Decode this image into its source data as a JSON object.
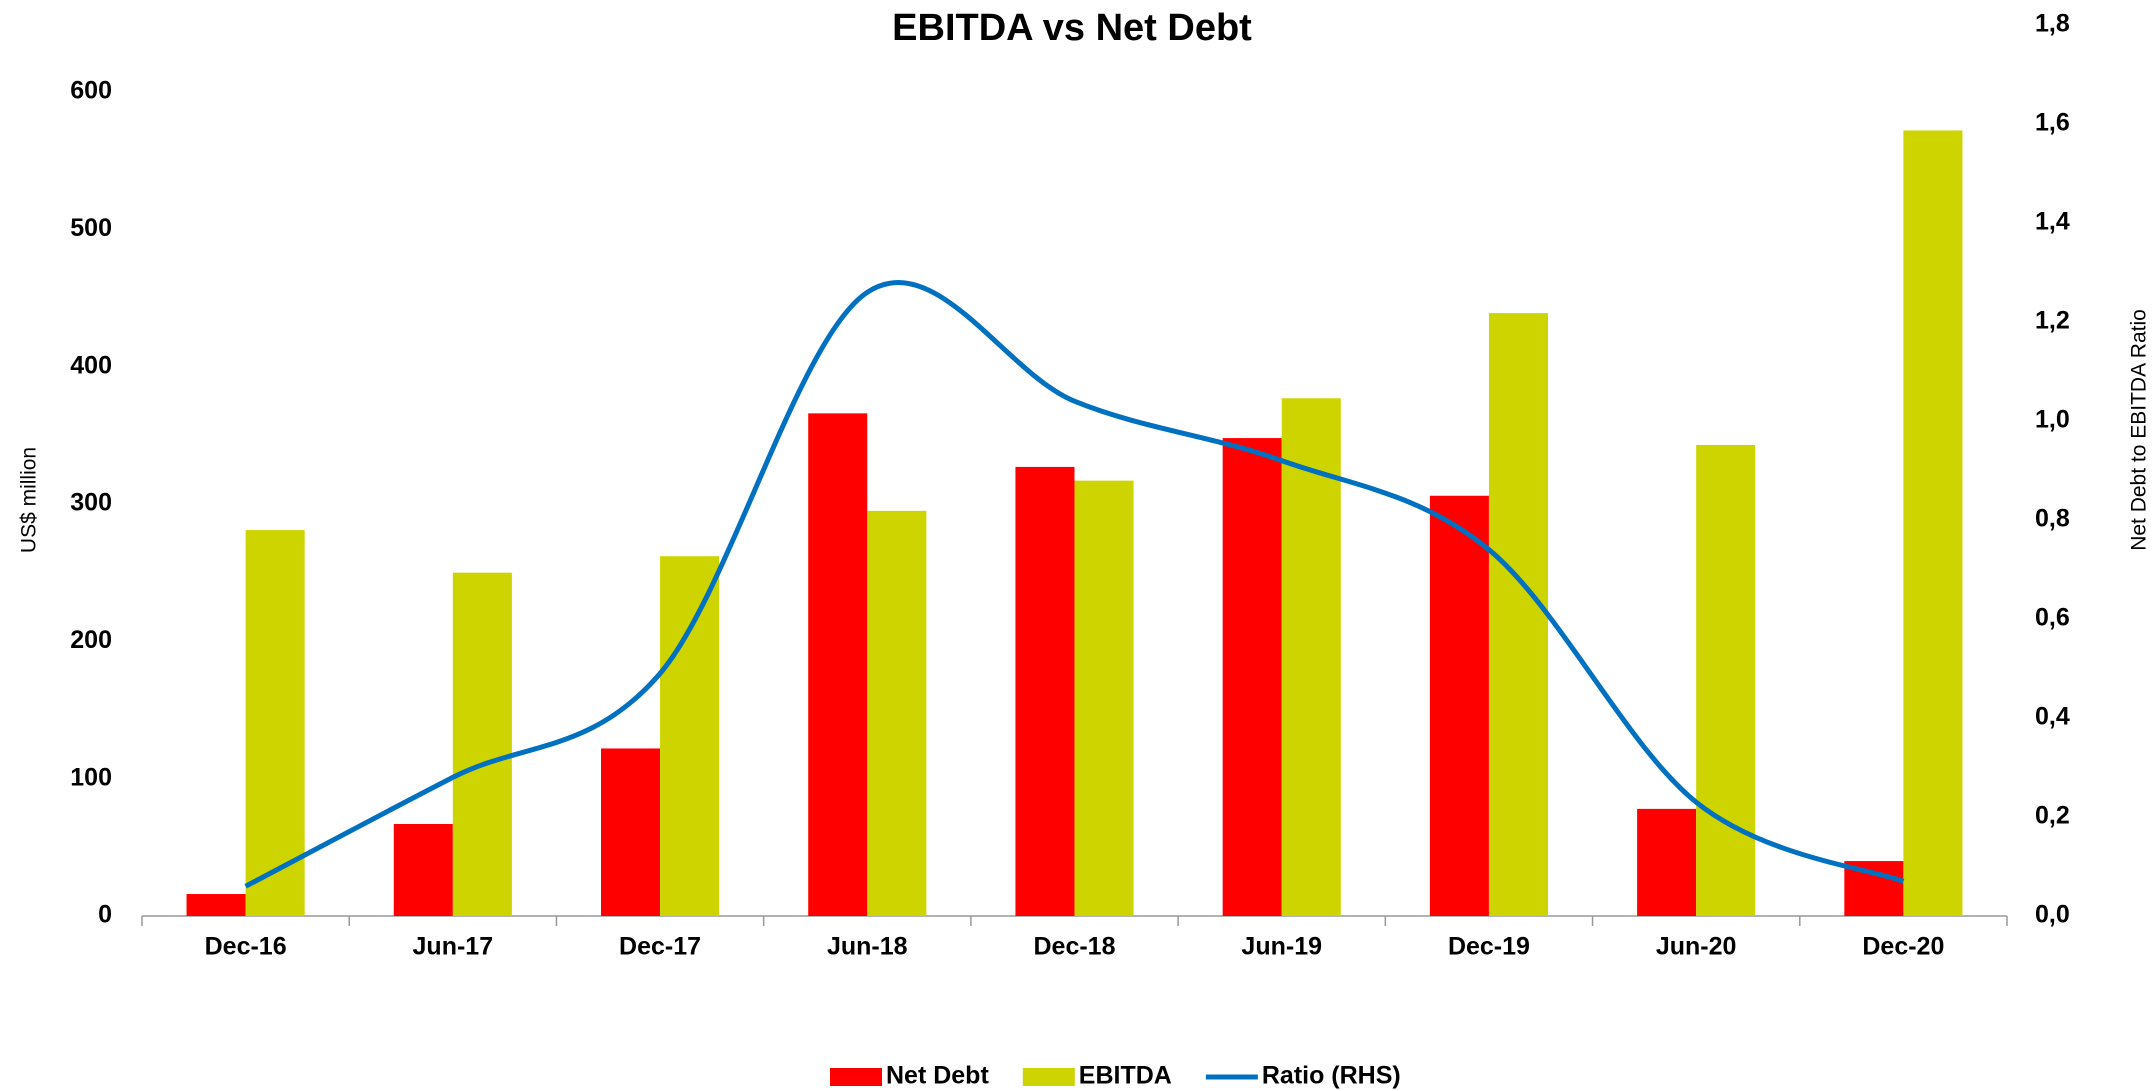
{
  "chart_data": {
    "type": "bar_line",
    "title": "EBITDA vs Net Debt",
    "categories": [
      "Dec-16",
      "Jun-17",
      "Dec-17",
      "Jun-18",
      "Dec-18",
      "Jun-19",
      "Dec-19",
      "Jun-20",
      "Dec-20"
    ],
    "series": [
      {
        "name": "Net Debt",
        "type": "bar",
        "color": "#ff0000",
        "values": [
          16,
          67,
          122,
          366,
          327,
          348,
          306,
          78,
          40
        ]
      },
      {
        "name": "EBITDA",
        "type": "bar",
        "color": "#cdd400",
        "values": [
          281,
          250,
          262,
          295,
          317,
          377,
          439,
          343,
          572
        ]
      },
      {
        "name": "Ratio (RHS)",
        "type": "line",
        "axis": "y2",
        "color": "#0070c0",
        "values": [
          0.06,
          0.28,
          0.49,
          1.26,
          1.04,
          0.92,
          0.74,
          0.23,
          0.07
        ]
      }
    ],
    "y_label": "US$ million",
    "y2_label": "Net Debt to EBITDA Ratio",
    "ylim": [
      0,
      600
    ],
    "yticks": [
      0,
      100,
      200,
      300,
      400,
      500,
      600
    ],
    "y2lim": [
      0,
      1.8
    ],
    "y2ticks": [
      {
        "value": 0,
        "label": "0,0"
      },
      {
        "value": 0.2,
        "label": "0,2"
      },
      {
        "value": 0.4,
        "label": "0,4"
      },
      {
        "value": 0.6,
        "label": "0,6"
      },
      {
        "value": 0.8,
        "label": "0,8"
      },
      {
        "value": 1.0,
        "label": "1,0"
      },
      {
        "value": 1.2,
        "label": "1,2"
      },
      {
        "value": 1.4,
        "label": "1,4"
      },
      {
        "value": 1.6,
        "label": "1,6"
      },
      {
        "value": 1.8,
        "label": "1,8"
      }
    ],
    "legend": "bottom",
    "grid": false
  }
}
